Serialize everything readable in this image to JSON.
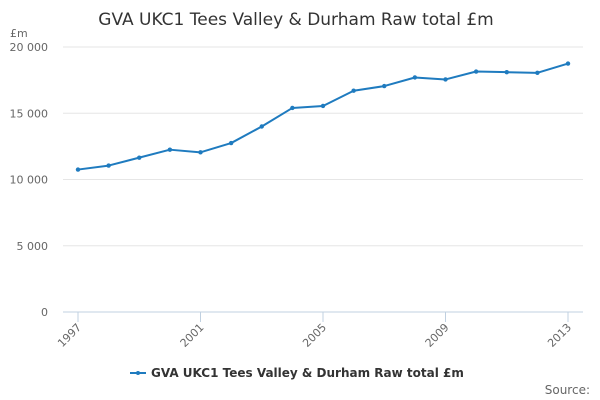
{
  "chart_data": {
    "type": "line",
    "title": "GVA UKC1 Tees Valley & Durham Raw total £m",
    "ylabel": "£m",
    "xlabel": "",
    "ylim": [
      0,
      20000
    ],
    "y_ticks": [
      0,
      5000,
      10000,
      15000,
      20000
    ],
    "y_tick_labels": [
      "0",
      "5 000",
      "10 000",
      "15 000",
      "20 000"
    ],
    "x_tick_labels": [
      "1997",
      "2001",
      "2005",
      "2009",
      "2013"
    ],
    "x": [
      1997,
      1998,
      1999,
      2000,
      2001,
      2002,
      2003,
      2004,
      2005,
      2006,
      2007,
      2008,
      2009,
      2010,
      2011,
      2012,
      2013
    ],
    "series": [
      {
        "name": "GVA UKC1 Tees Valley & Durham Raw total £m",
        "color": "#1f7bbf",
        "values": [
          10750,
          11050,
          11650,
          12250,
          12050,
          12750,
          14000,
          15400,
          15550,
          16700,
          17050,
          17700,
          17550,
          18150,
          18100,
          18050,
          18750
        ]
      }
    ],
    "legend": "bottom-center",
    "grid": true
  },
  "credits": {
    "label": "Source:"
  }
}
